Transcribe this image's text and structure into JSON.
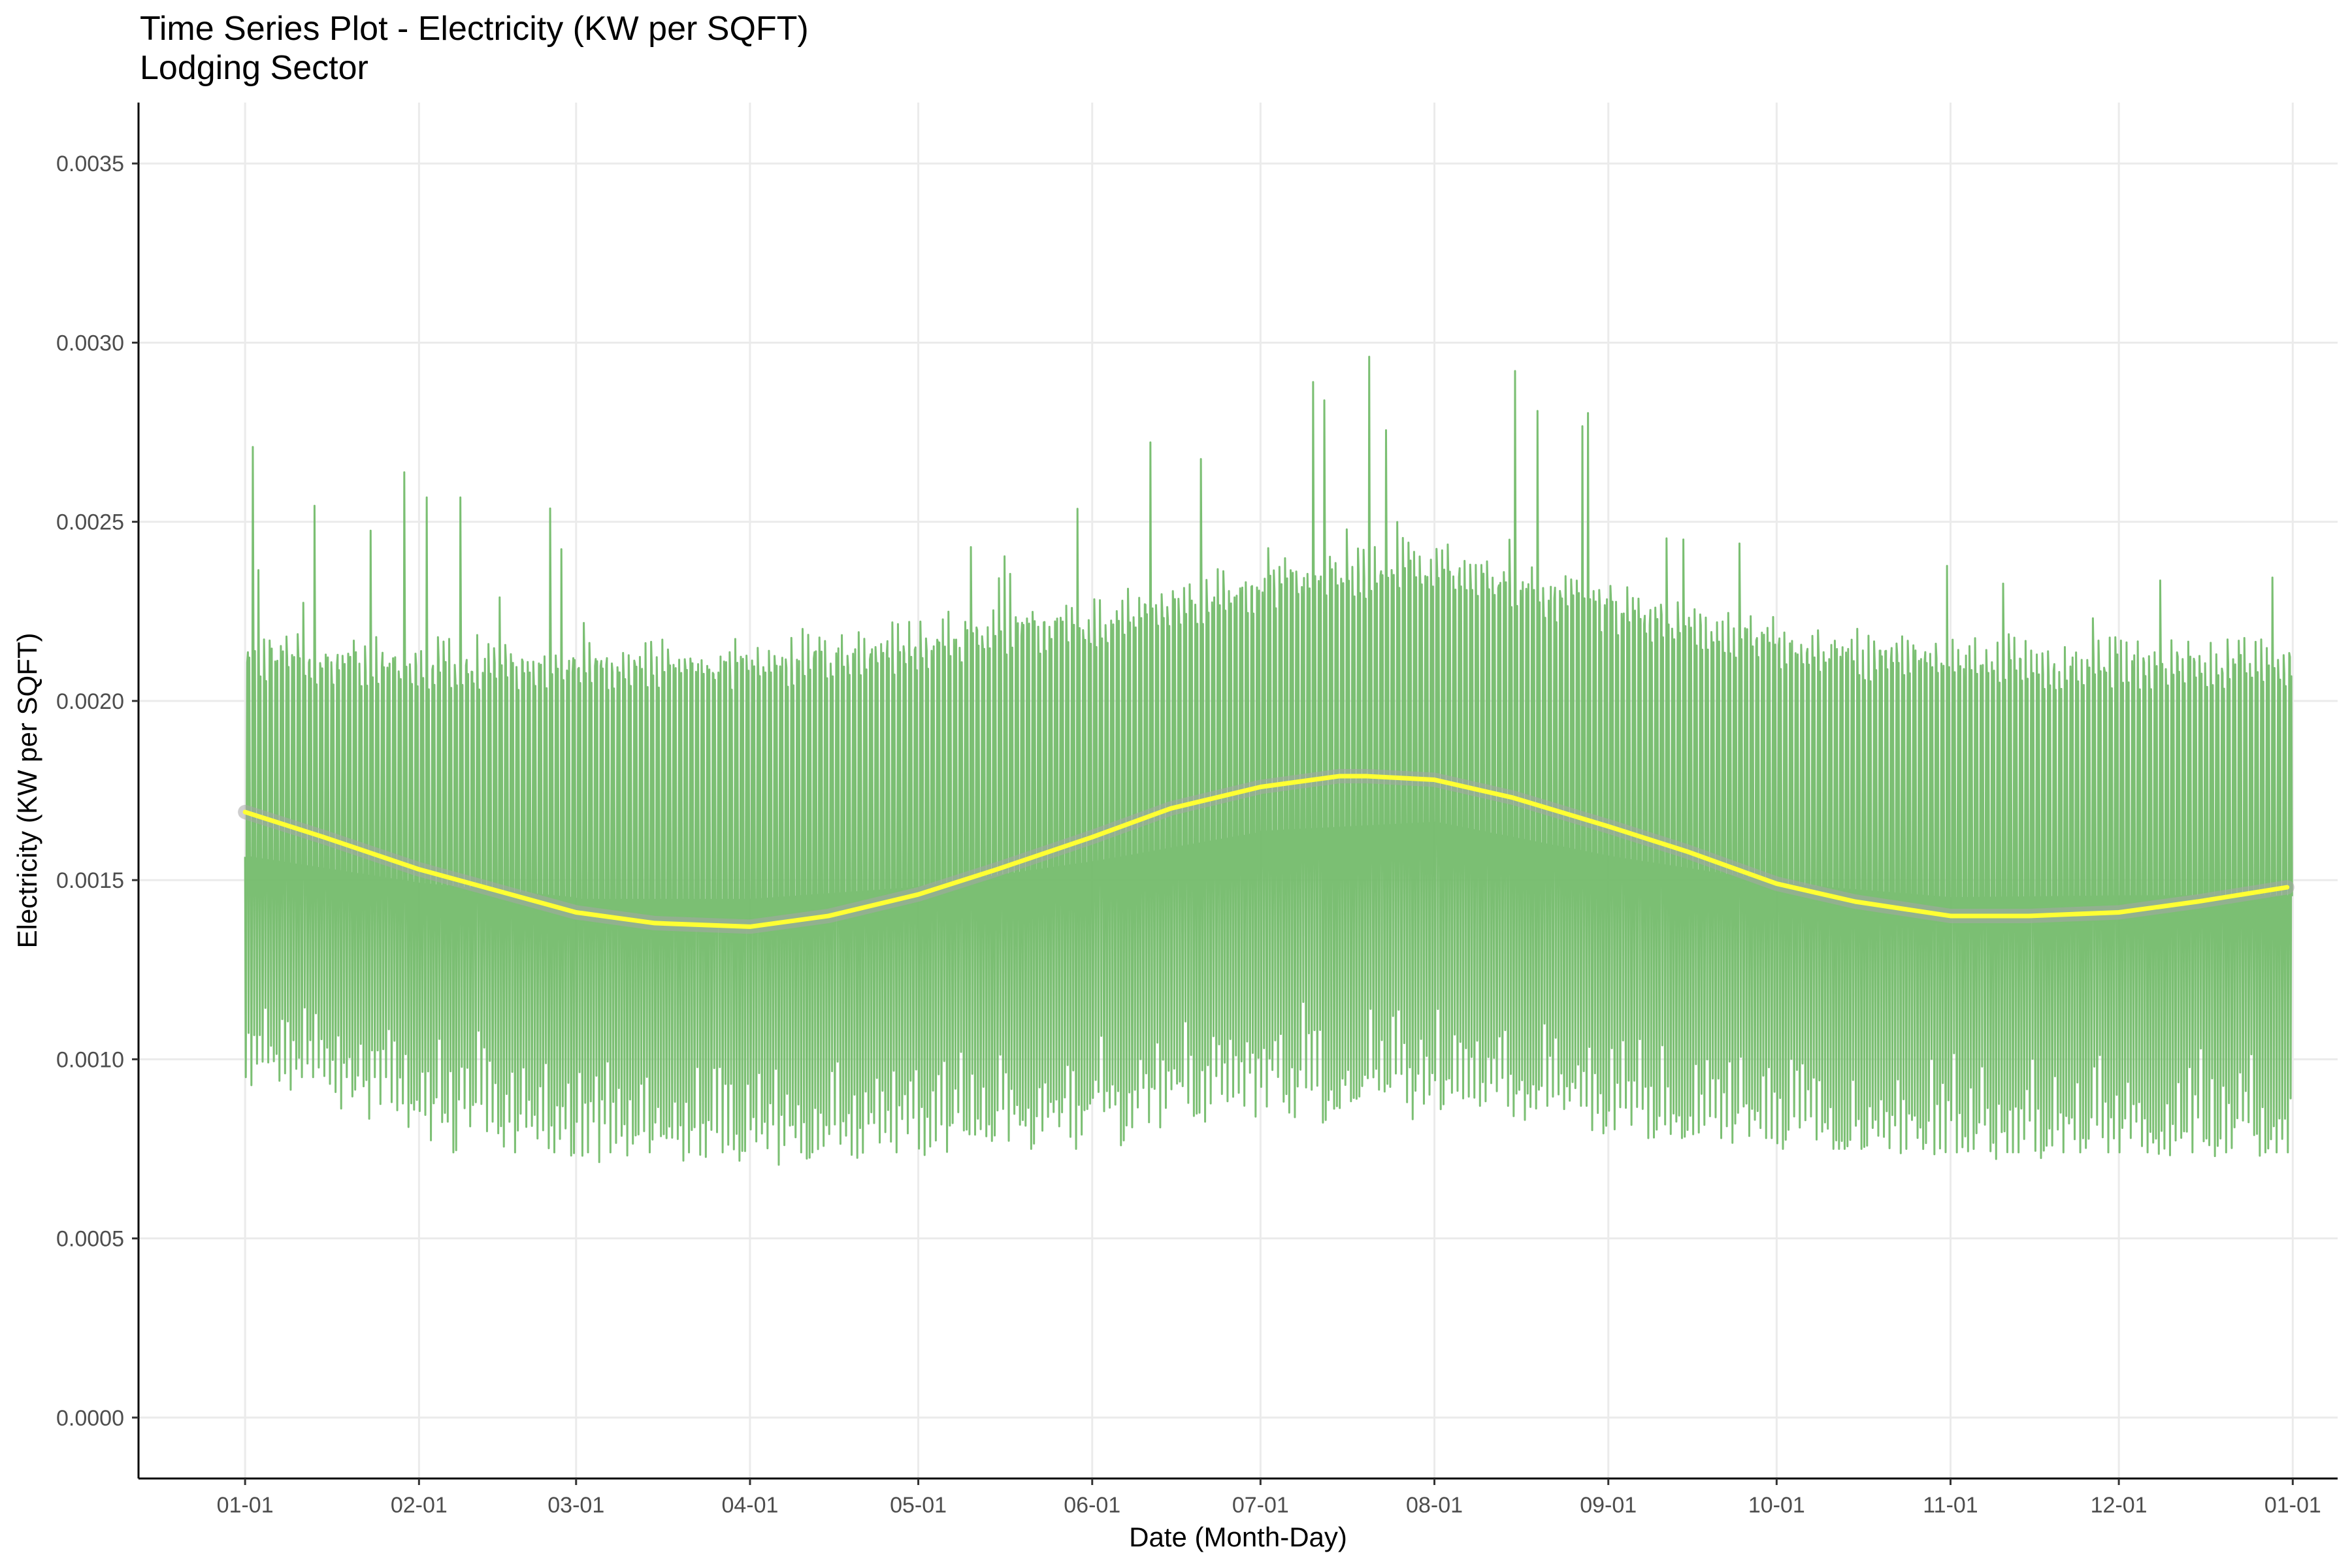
{
  "chart_data": {
    "type": "line",
    "title": "Time Series Plot - Electricity (KW per SQFT)",
    "subtitle": "Lodging Sector",
    "xlabel": "Date (Month-Day)",
    "ylabel": "Electricity (KW per SQFT)",
    "x_tick_labels": [
      "01-01",
      "02-01",
      "03-01",
      "04-01",
      "05-01",
      "06-01",
      "07-01",
      "08-01",
      "09-01",
      "10-01",
      "11-01",
      "12-01",
      "01-01"
    ],
    "y_tick_labels": [
      "0.0000",
      "0.0005",
      "0.0010",
      "0.0015",
      "0.0020",
      "0.0025",
      "0.0030",
      "0.0035"
    ],
    "y_ticks": [
      0,
      0.0005,
      0.001,
      0.0015,
      0.002,
      0.0025,
      0.003,
      0.0035
    ],
    "ylim": [
      -0.00017,
      0.00367
    ],
    "xlim": [
      "2017-12-13",
      "2019-01-09"
    ],
    "x_tick_dates": [
      "2018-01-01",
      "2018-02-01",
      "2018-03-01",
      "2018-04-01",
      "2018-05-01",
      "2018-06-01",
      "2018-07-01",
      "2018-08-01",
      "2018-09-01",
      "2018-10-01",
      "2018-11-01",
      "2018-12-01",
      "2019-01-01"
    ],
    "grid": true,
    "series": [
      {
        "style": "hourly line",
        "color": "#74bc6c",
        "x_range": [
          "2018-01-01",
          "2018-12-31"
        ],
        "monthly_summary": {
          "months": [
            "01",
            "02",
            "03",
            "04",
            "05",
            "06",
            "07",
            "08",
            "09",
            "10",
            "11",
            "12"
          ],
          "typical_high": [
            0.00215,
            0.00213,
            0.00212,
            0.00213,
            0.00218,
            0.00225,
            0.00235,
            0.0024,
            0.00228,
            0.00218,
            0.00213,
            0.00213
          ],
          "typical_low": [
            0.00098,
            0.00085,
            0.00077,
            0.00076,
            0.00078,
            0.00085,
            0.00092,
            0.00092,
            0.00085,
            0.0008,
            0.00077,
            0.00078
          ],
          "peak": [
            0.00275,
            0.00268,
            0.00225,
            0.00242,
            0.00262,
            0.00301,
            0.00297,
            0.00297,
            0.00267,
            0.00254,
            0.00233,
            0.00245
          ],
          "min": [
            0.00095,
            0.00074,
            0.00074,
            0.00074,
            0.00075,
            0.00076,
            0.00078,
            0.00087,
            0.00078,
            0.00075,
            0.00074,
            0.00074
          ]
        }
      },
      {
        "style": "smooth trend",
        "color": "#ffff33",
        "band_color": "#a6a6a6",
        "x": [
          "2018-01-01",
          "2018-01-15",
          "2018-02-01",
          "2018-02-15",
          "2018-03-01",
          "2018-03-15",
          "2018-04-01",
          "2018-04-15",
          "2018-05-01",
          "2018-05-15",
          "2018-06-01",
          "2018-06-15",
          "2018-07-01",
          "2018-07-15",
          "2018-07-20",
          "2018-08-01",
          "2018-08-15",
          "2018-09-01",
          "2018-09-15",
          "2018-10-01",
          "2018-10-15",
          "2018-11-01",
          "2018-11-10",
          "2018-11-15",
          "2018-12-01",
          "2018-12-15",
          "2018-12-31"
        ],
        "y": [
          0.00169,
          0.00162,
          0.00153,
          0.00147,
          0.00141,
          0.00138,
          0.00137,
          0.0014,
          0.00146,
          0.00153,
          0.00162,
          0.0017,
          0.00176,
          0.00179,
          0.00179,
          0.00178,
          0.00173,
          0.00165,
          0.00158,
          0.00149,
          0.00144,
          0.0014,
          0.0014,
          0.0014,
          0.00141,
          0.00144,
          0.00148
        ]
      }
    ]
  }
}
